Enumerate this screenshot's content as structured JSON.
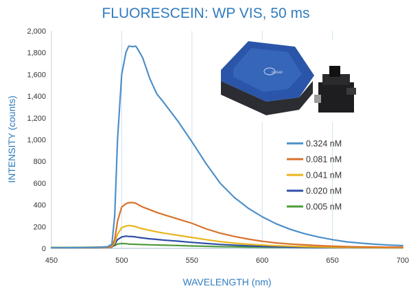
{
  "chart_data": {
    "type": "line",
    "title": "FLUORESCEIN: WP VIS, 50 ms",
    "xlabel": "WAVELENGTH (nm)",
    "ylabel": "INTENSITY (counts)",
    "xlim": [
      450,
      700
    ],
    "ylim": [
      0,
      2000
    ],
    "x_ticks": [
      "450",
      "500",
      "550",
      "600",
      "650",
      "700"
    ],
    "y_ticks": [
      "0",
      "200",
      "400",
      "600",
      "800",
      "1,000",
      "1,200",
      "1,400",
      "1,600",
      "1,800",
      "2,000"
    ],
    "grid": "vertical",
    "legend_position": "right",
    "x": [
      450,
      460,
      470,
      480,
      490,
      493,
      495,
      497,
      500,
      503,
      505,
      508,
      510,
      512,
      515,
      520,
      525,
      530,
      540,
      550,
      560,
      570,
      580,
      590,
      600,
      610,
      620,
      630,
      640,
      650,
      660,
      670,
      680,
      690,
      700
    ],
    "series": [
      {
        "name": "0.324 nM",
        "color": "#4e8fc8",
        "values": [
          5,
          5,
          6,
          8,
          15,
          40,
          300,
          1000,
          1600,
          1800,
          1860,
          1855,
          1860,
          1820,
          1750,
          1560,
          1420,
          1340,
          1170,
          980,
          780,
          600,
          470,
          370,
          290,
          225,
          175,
          135,
          105,
          80,
          60,
          48,
          38,
          30,
          25
        ]
      },
      {
        "name": "0.081 nM",
        "color": "#d9712a",
        "values": [
          5,
          5,
          6,
          6,
          10,
          20,
          80,
          250,
          380,
          410,
          420,
          420,
          415,
          400,
          380,
          355,
          330,
          310,
          270,
          230,
          180,
          140,
          110,
          85,
          65,
          50,
          40,
          32,
          25,
          20,
          16,
          14,
          12,
          10,
          10
        ]
      },
      {
        "name": "0.041 nM",
        "color": "#e9b51a",
        "values": [
          5,
          5,
          5,
          6,
          8,
          15,
          50,
          130,
          190,
          205,
          210,
          205,
          200,
          190,
          180,
          165,
          152,
          140,
          120,
          100,
          80,
          62,
          48,
          38,
          30,
          24,
          20,
          16,
          13,
          11,
          9,
          8,
          7,
          6,
          6
        ]
      },
      {
        "name": "0.020 nM",
        "color": "#2e4fa8",
        "values": [
          5,
          5,
          5,
          5,
          7,
          12,
          35,
          80,
          105,
          112,
          110,
          108,
          105,
          100,
          95,
          88,
          82,
          76,
          66,
          55,
          45,
          36,
          29,
          23,
          18,
          15,
          12,
          10,
          9,
          8,
          7,
          6,
          6,
          5,
          5
        ]
      },
      {
        "name": "0.005 nM",
        "color": "#4e9a3a",
        "values": [
          8,
          8,
          9,
          10,
          12,
          15,
          25,
          40,
          45,
          43,
          40,
          38,
          37,
          36,
          35,
          33,
          31,
          29,
          26,
          22,
          19,
          16,
          14,
          12,
          11,
          10,
          10,
          9,
          9,
          9,
          9,
          9,
          8,
          8,
          8
        ]
      }
    ]
  },
  "inset_photo": {
    "device_label": "ocean",
    "device_color": "#2a55a8"
  }
}
